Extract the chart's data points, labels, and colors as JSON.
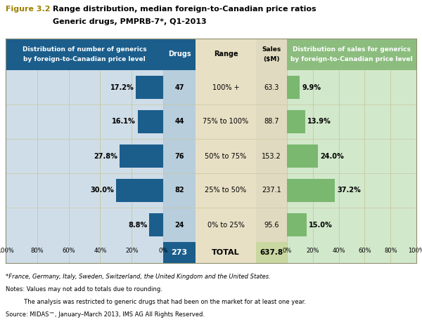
{
  "title_label": "Figure 3.2",
  "title_main": "Range distribution, median foreign-to-Canadian price ratios",
  "title_sub": "Generic drugs, PMPRB-7*, Q1-2013",
  "ranges": [
    "100% +",
    "75% to 100%",
    "50% to 75%",
    "25% to 50%",
    "0% to 25%"
  ],
  "drugs": [
    47,
    44,
    76,
    82,
    24
  ],
  "drugs_total": 273,
  "sales": [
    "63.3",
    "88.7",
    "153.2",
    "237.1",
    "95.6"
  ],
  "sales_total": "637.8",
  "left_pct": [
    17.2,
    16.1,
    27.8,
    30.0,
    8.8
  ],
  "right_pct": [
    9.9,
    13.9,
    24.0,
    37.2,
    15.0
  ],
  "col_bar_blue": "#1b5e8c",
  "col_bar_green": "#7ab870",
  "col_hdr_blue": "#1b5e8c",
  "col_hdr_green": "#8cbd7f",
  "col_bg_left": "#cfdde8",
  "col_bg_drugs": "#b8cedd",
  "col_bg_center_range": "#e8e0c5",
  "col_bg_sales": "#e0dac0",
  "col_bg_right": "#d2e8cb",
  "col_grid": "#c8c89a",
  "col_total_bg_drugs": "#1b5e8c",
  "col_total_bg_range": "#e8e0c5",
  "col_total_bg_sales": "#c8d8a0",
  "footnote1": "*France, Germany, Italy, Sweden, Switzerland, the United Kingdom and the United States.",
  "footnote2": "Notes: Values may not add to totals due to rounding.",
  "footnote3": "          The analysis was restricted to generic drugs that had been on the market for at least one year.",
  "footnote4": "Source: MIDAS™, January–March 2013, IMS AG All Rights Reserved."
}
